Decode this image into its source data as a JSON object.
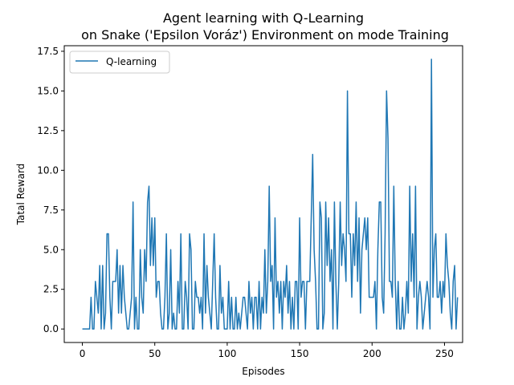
{
  "chart_data": {
    "type": "line",
    "title_line1": "Agent learning with Q-Learning",
    "title_line2": "on Snake ('Epsilon Voráz') Environment on mode Training",
    "xlabel": "Episodes",
    "ylabel": "Tatal Reward",
    "xlim": [
      -12.5,
      262.5
    ],
    "ylim": [
      -0.85,
      17.85
    ],
    "xticks": [
      0,
      50,
      100,
      150,
      200,
      250
    ],
    "yticks": [
      0.0,
      2.5,
      5.0,
      7.5,
      10.0,
      12.5,
      15.0,
      17.5
    ],
    "ytick_labels": [
      "0.0",
      "2.5",
      "5.0",
      "7.5",
      "10.0",
      "12.5",
      "15.0",
      "17.5"
    ],
    "legend_position": "upper-left",
    "grid": false,
    "series": [
      {
        "name": "Q-learning",
        "color": "#1f77b4",
        "y": [
          0,
          0,
          0,
          0,
          0,
          0,
          2,
          0,
          0,
          3,
          2,
          1,
          4,
          0,
          4,
          0,
          1,
          6,
          6,
          2,
          0,
          3,
          3,
          3,
          5,
          1,
          4,
          1,
          4,
          2,
          1,
          0,
          0,
          1,
          2,
          8,
          0,
          2,
          0,
          0,
          5,
          2,
          1,
          5,
          3,
          8,
          9,
          4,
          7,
          4,
          7,
          2,
          3,
          3,
          1,
          0,
          0,
          2,
          6,
          0,
          1,
          5,
          0,
          1,
          0,
          0,
          3,
          1,
          6,
          0,
          0,
          3,
          2,
          0,
          6,
          5,
          0,
          0,
          3,
          2,
          2,
          1,
          2,
          0,
          6,
          1,
          4,
          2,
          1,
          0,
          3,
          6,
          2,
          0,
          0,
          4,
          1,
          2,
          0,
          0,
          0,
          3,
          0,
          2,
          0,
          0,
          2,
          0,
          1,
          0,
          1,
          2,
          2,
          1,
          0,
          3,
          1,
          2,
          0,
          2,
          2,
          0,
          3,
          0,
          2,
          1,
          5,
          1,
          3,
          9,
          3,
          4,
          0,
          7,
          2,
          3,
          1,
          3,
          0,
          3,
          2,
          4,
          1,
          3,
          0,
          2,
          0,
          3,
          3,
          0,
          7,
          2,
          3,
          3,
          0,
          3,
          3,
          3,
          7,
          11,
          5,
          3,
          0,
          0,
          8,
          7,
          0,
          1,
          8,
          4,
          7,
          3,
          5,
          0,
          8,
          3,
          0,
          3,
          8,
          4,
          6,
          5,
          3,
          15,
          6,
          6,
          2,
          6,
          4,
          8,
          3,
          7,
          1,
          5,
          6,
          7,
          5,
          7,
          2,
          2,
          2,
          2,
          3,
          0,
          5,
          8,
          8,
          2,
          1,
          6,
          15,
          12,
          3,
          3,
          2,
          9,
          3,
          0,
          3,
          0,
          0,
          2,
          0,
          1,
          3,
          1,
          9,
          3,
          6,
          2,
          9,
          0,
          2,
          3,
          2,
          0,
          1,
          2,
          3,
          2,
          0,
          17,
          2,
          5,
          6,
          2,
          2,
          3,
          1,
          3,
          2,
          6,
          4,
          3,
          1,
          0,
          3,
          4,
          0,
          2
        ]
      }
    ]
  }
}
